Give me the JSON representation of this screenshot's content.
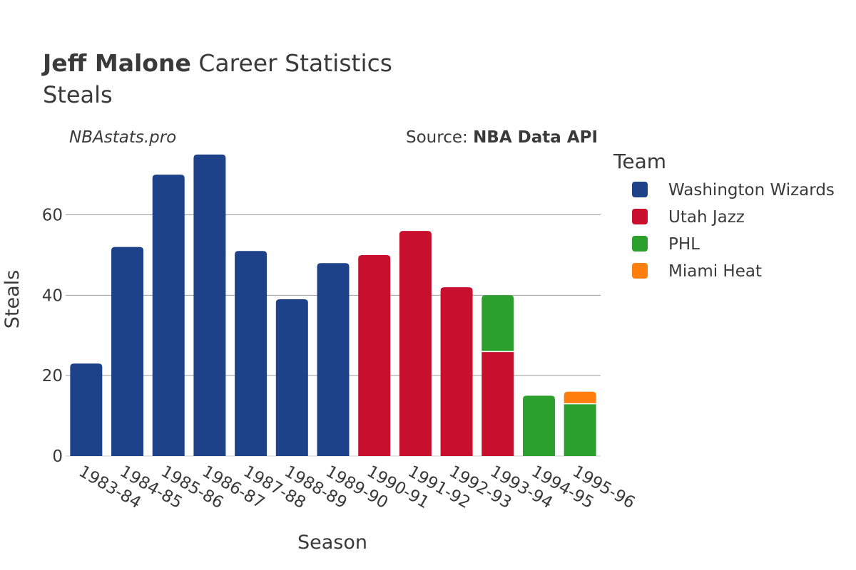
{
  "header": {
    "title_bold": "Jeff Malone",
    "title_rest": " Career Statistics",
    "subtitle": "Steals",
    "watermark": "NBAstats.pro",
    "source_prefix": "Source: ",
    "source_bold": "NBA Data API"
  },
  "chart_data": {
    "type": "bar",
    "stacked": true,
    "categories": [
      "1983-84",
      "1984-85",
      "1985-86",
      "1986-87",
      "1987-88",
      "1988-89",
      "1989-90",
      "1990-91",
      "1991-92",
      "1992-93",
      "1993-94",
      "1994-95",
      "1995-96"
    ],
    "series": [
      {
        "name": "Washington Wizards",
        "color": "#1d428a",
        "values": [
          23,
          52,
          70,
          75,
          51,
          39,
          48,
          0,
          0,
          0,
          0,
          0,
          0
        ]
      },
      {
        "name": "Utah Jazz",
        "color": "#c8102e",
        "values": [
          0,
          0,
          0,
          0,
          0,
          0,
          0,
          50,
          56,
          42,
          26,
          0,
          0
        ]
      },
      {
        "name": "PHL",
        "color": "#2ca02c",
        "values": [
          0,
          0,
          0,
          0,
          0,
          0,
          0,
          0,
          0,
          0,
          14,
          15,
          13
        ]
      },
      {
        "name": "Miami Heat",
        "color": "#ff7f0e",
        "values": [
          0,
          0,
          0,
          0,
          0,
          0,
          0,
          0,
          0,
          0,
          0,
          0,
          3
        ]
      }
    ],
    "xlabel": "Season",
    "ylabel": "Steals",
    "ylim": [
      0,
      78
    ],
    "yticks": [
      0,
      20,
      40,
      60
    ],
    "grid": true,
    "legend_title": "Team",
    "legend_position": "right"
  }
}
